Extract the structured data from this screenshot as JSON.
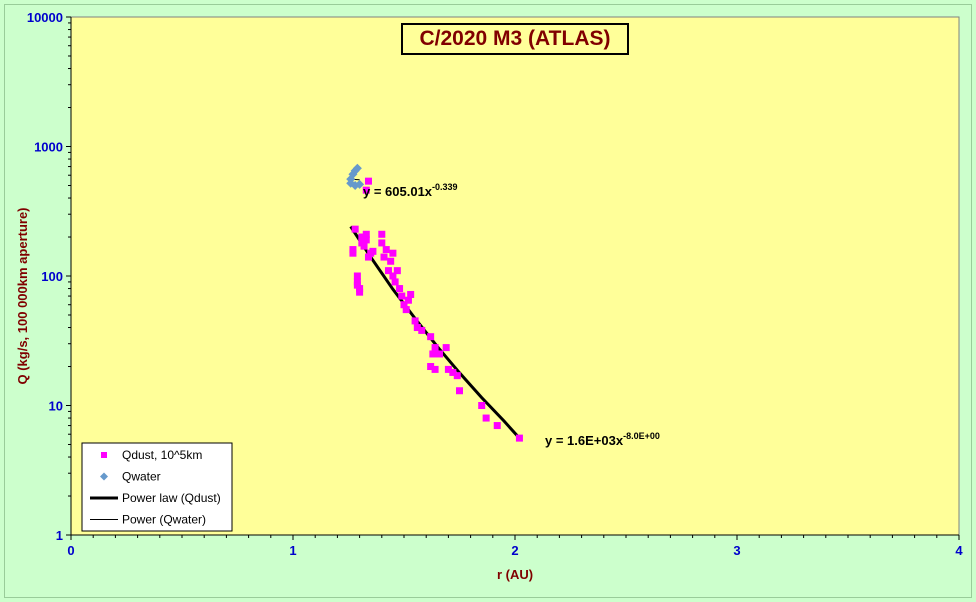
{
  "chart_data": {
    "type": "scatter",
    "title": "C/2020 M3 (ATLAS)",
    "xlabel": "r (AU)",
    "ylabel": "Q (kg/s, 100 000km aperture)",
    "xlim": [
      0,
      4
    ],
    "ylim": [
      1,
      10000
    ],
    "y_scale": "log",
    "x_ticks": [
      "0",
      "1",
      "2",
      "3",
      "4"
    ],
    "y_ticks": [
      "1",
      "10",
      "100",
      "1000",
      "10000"
    ],
    "x_tick_values": [
      0,
      1,
      2,
      3,
      4
    ],
    "y_tick_values": [
      1,
      10,
      100,
      1000,
      10000
    ],
    "grid": false,
    "plot_background": "#ffff99",
    "legend_position": "bottom-left",
    "series": [
      {
        "name": "Qdust, 10^5km",
        "marker": "square",
        "color": "#ff00ff",
        "points": [
          [
            1.27,
            150
          ],
          [
            1.27,
            160
          ],
          [
            1.28,
            230
          ],
          [
            1.29,
            100
          ],
          [
            1.29,
            90
          ],
          [
            1.3,
            80
          ],
          [
            1.3,
            75
          ],
          [
            1.29,
            85
          ],
          [
            1.31,
            200
          ],
          [
            1.31,
            180
          ],
          [
            1.32,
            170
          ],
          [
            1.33,
            210
          ],
          [
            1.33,
            190
          ],
          [
            1.34,
            140
          ],
          [
            1.35,
            150
          ],
          [
            1.36,
            155
          ],
          [
            1.33,
            460
          ],
          [
            1.34,
            540
          ],
          [
            1.4,
            210
          ],
          [
            1.4,
            180
          ],
          [
            1.41,
            140
          ],
          [
            1.42,
            160
          ],
          [
            1.43,
            110
          ],
          [
            1.44,
            130
          ],
          [
            1.45,
            150
          ],
          [
            1.45,
            100
          ],
          [
            1.46,
            90
          ],
          [
            1.47,
            110
          ],
          [
            1.48,
            80
          ],
          [
            1.49,
            70
          ],
          [
            1.5,
            60
          ],
          [
            1.51,
            55
          ],
          [
            1.52,
            65
          ],
          [
            1.53,
            72
          ],
          [
            1.55,
            45
          ],
          [
            1.56,
            40
          ],
          [
            1.58,
            38
          ],
          [
            1.62,
            34
          ],
          [
            1.63,
            25
          ],
          [
            1.64,
            28
          ],
          [
            1.62,
            20
          ],
          [
            1.64,
            19
          ],
          [
            1.66,
            25
          ],
          [
            1.69,
            28
          ],
          [
            1.7,
            19
          ],
          [
            1.72,
            18
          ],
          [
            1.74,
            17
          ],
          [
            1.75,
            13
          ],
          [
            1.85,
            10
          ],
          [
            1.87,
            8
          ],
          [
            1.92,
            7
          ],
          [
            2.02,
            5.6
          ]
        ]
      },
      {
        "name": "Qwater",
        "marker": "diamond",
        "color": "#6699cc",
        "points": [
          [
            1.26,
            560
          ],
          [
            1.27,
            610
          ],
          [
            1.28,
            650
          ],
          [
            1.29,
            680
          ],
          [
            1.26,
            520
          ],
          [
            1.28,
            500
          ],
          [
            1.3,
            510
          ]
        ]
      },
      {
        "name": "Power law (Qdust)",
        "type": "line",
        "color": "#000000",
        "width": 3,
        "equation": "y = 1.6E+03x",
        "exponent": "-8.0E+00",
        "points": [
          [
            1.26,
            241
          ],
          [
            1.35,
            140
          ],
          [
            1.45,
            79
          ],
          [
            1.55,
            47
          ],
          [
            1.65,
            28.5
          ],
          [
            1.75,
            17.9
          ],
          [
            1.85,
            11.5
          ],
          [
            1.95,
            7.6
          ],
          [
            2.02,
            5.6
          ]
        ]
      },
      {
        "name": "Power (Qwater)",
        "type": "line",
        "color": "#000000",
        "width": 1,
        "equation": "y = 605.01x",
        "exponent": "-0.339",
        "points": [
          [
            1.26,
            559
          ],
          [
            1.3,
            553
          ]
        ]
      }
    ]
  }
}
